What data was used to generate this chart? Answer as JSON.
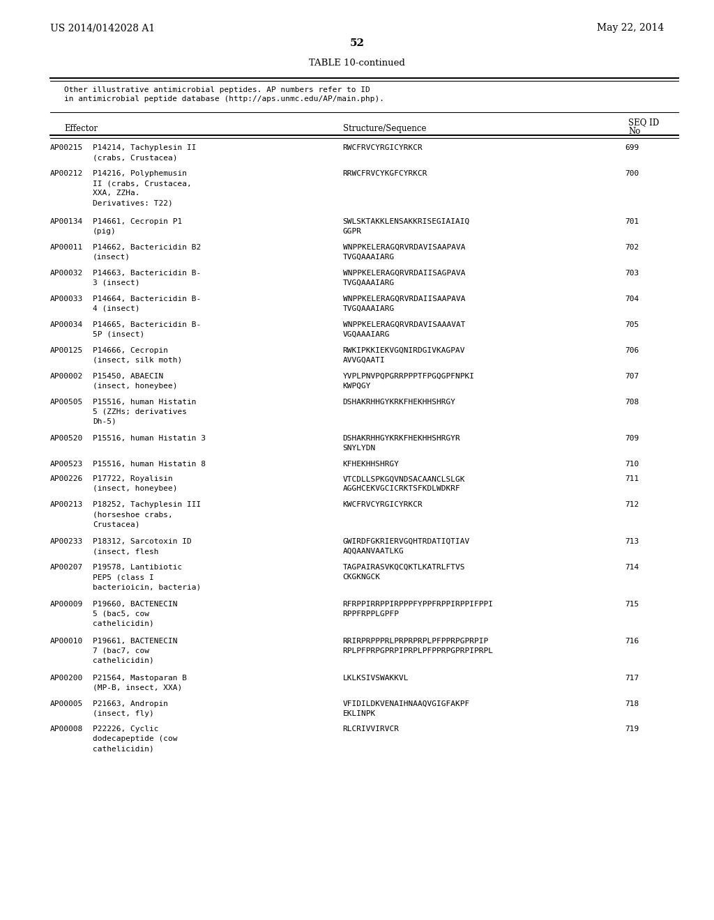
{
  "page_left": "US 2014/0142028 A1",
  "page_right": "May 22, 2014",
  "page_number": "52",
  "table_title": "TABLE 10-continued",
  "table_note": "Other illustrative antimicrobial peptides. AP numbers refer to ID\nin antimicrobial peptide database (http://aps.unmc.edu/AP/main.php).",
  "col_headers": [
    "Effector",
    "Structure/Sequence",
    "SEQ ID\nNo"
  ],
  "rows": [
    [
      "AP00215",
      "P14214, Tachyplesin II\n(crabs, Crustacea)",
      "RWCFRVCYRGICYRKCR",
      "699"
    ],
    [
      "AP00212",
      "P14216, Polyphemusin\nII (crabs, Crustacea,\nXXA, ZZHa.\nDerivatives: T22)",
      "RRWCFRVCYKGFCYRKCR",
      "700"
    ],
    [
      "AP00134",
      "P14661, Cecropin P1\n(pig)",
      "SWLSKTAKKLENSAKKRISEGIAIAIQ\nGGPR",
      "701"
    ],
    [
      "AP00011",
      "P14662, Bactericidin B2\n(insect)",
      "WNPPKELERAGQRVRDAVISAAPAVA\nTVGQAAAIARG",
      "702"
    ],
    [
      "AP00032",
      "P14663, Bactericidin B-\n3 (insect)",
      "WNPPKELERAGQRVRDAIISAGPAVA\nTVGQAAAIARG",
      "703"
    ],
    [
      "AP00033",
      "P14664, Bactericidin B-\n4 (insect)",
      "WNPPKELERAGQRVRDAIISAAPAVA\nTVGQAAAIARG",
      "704"
    ],
    [
      "AP00034",
      "P14665, Bactericidin B-\n5P (insect)",
      "WNPPKELERAGQRVRDAVISAAAVAT\nVGQAAAIARG",
      "705"
    ],
    [
      "AP00125",
      "P14666, Cecropin\n(insect, silk moth)",
      "RWKIPKKIEKVGQNIRDGIVKAGPAV\nAVVGQAATI",
      "706"
    ],
    [
      "AP00002",
      "P15450, ABAECIN\n(insect, honeybee)",
      "YVPLPNVPQPGRRPPPTFPGQGPFNPKI\nKWPQGY",
      "707"
    ],
    [
      "AP00505",
      "P15516, human Histatin\n5 (ZZHs; derivatives\nDh-5)",
      "DSHAKRHHGYKRKFHEKHHSHRGY",
      "708"
    ],
    [
      "AP00520",
      "P15516, human Histatin 3",
      "DSHAKRHHGYKRKFHEKHHSHRGYR\nSNYLYDN",
      "709"
    ],
    [
      "AP00523",
      "P15516, human Histatin 8",
      "KFHEKHHSHRGY",
      "710"
    ],
    [
      "AP00226",
      "P17722, Royalisin\n(insect, honeybee)",
      "VTCDLLSPKGQVNDSACAANCLSLGK\nAGGHCEKVGCICRKTSFKDLWDKRF",
      "711"
    ],
    [
      "AP00213",
      "P18252, Tachyplesin III\n(horseshoe crabs,\nCrustacea)",
      "KWCFRVCYRGICYRKCR",
      "712"
    ],
    [
      "AP00233",
      "P18312, Sarcotoxin ID\n(insect, flesh",
      "GWIRDFGKRIERVGQHTRDATIQTIAV\nAQQAANVAATLKG",
      "713"
    ],
    [
      "AP00207",
      "P19578, Lantibiotic\nPEP5 (class I\nbacterioicin, bacteria)",
      "TAGPAIRASVKQCQKTLKATRLFTVS\nCKGKNGCK",
      "714"
    ],
    [
      "AP00009",
      "P19660, BACTENECIN\n5 (bac5, cow\ncathelicidin)",
      "RFRPPIRRPPIRPPPFYPPFRPPIRPPIFPPI\nRPPFRPPLGPFP",
      "715"
    ],
    [
      "AP00010",
      "P19661, BACTENECIN\n7 (bac7, cow\ncathelicidin)",
      "RRIRPRPPPRLPRPRPRPLPFPPRPGPRPIP\nRPLPFPRPGPRPIPRPLPFPPRPGPRPIPRPL",
      "716"
    ],
    [
      "AP00200",
      "P21564, Mastoparan B\n(MP-B, insect, XXA)",
      "LKLKSIVSWAKKVL",
      "717"
    ],
    [
      "AP00005",
      "P21663, Andropin\n(insect, fly)",
      "VFIDILDKVENAIHNAAQVGIGFAKPF\nEKLINPK",
      "718"
    ],
    [
      "AP00008",
      "P22226, Cyclic\ndodecapeptide (cow\ncathelicidin)",
      "RLCRIVVIRVCR",
      "719"
    ]
  ],
  "bg_color": "#ffffff",
  "text_color": "#000000",
  "font_size": 8.5,
  "mono_font_size": 8.5
}
